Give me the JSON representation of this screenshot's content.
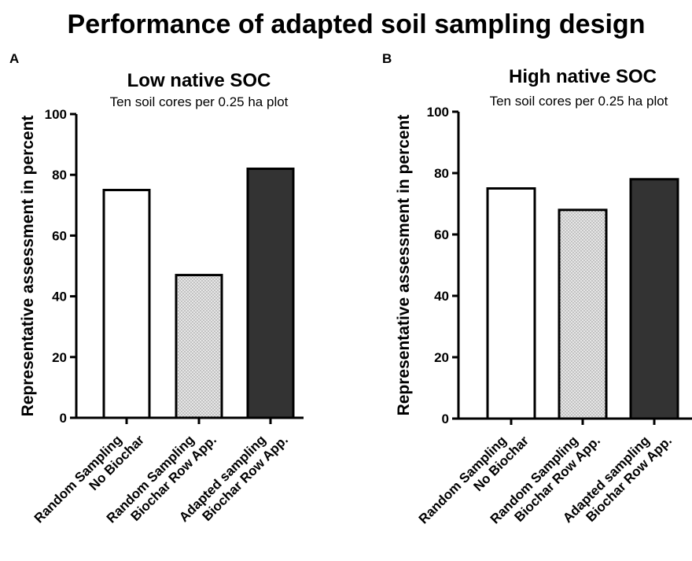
{
  "figure": {
    "title": "Performance of adapted soil sampling design"
  },
  "chart_data": [
    {
      "type": "bar",
      "panel": "A",
      "title": "Low native SOC",
      "subtitle": "Ten soil cores per 0.25 ha plot",
      "xlabel": "",
      "ylabel": "Representative assessment in percent",
      "ylim": [
        0,
        100
      ],
      "yticks": [
        0,
        20,
        40,
        60,
        80,
        100
      ],
      "grid": false,
      "legend": "none",
      "categories": [
        [
          "Random Sampling",
          "No Biochar"
        ],
        [
          "Random Sampling",
          "Biochar Row App."
        ],
        [
          "Adapted sampling",
          "Biochar Row App."
        ]
      ],
      "values": [
        75,
        47,
        82
      ],
      "bar_styles": [
        "white",
        "dotted",
        "dark"
      ]
    },
    {
      "type": "bar",
      "panel": "B",
      "title": "High native SOC",
      "subtitle": "Ten soil cores per 0.25 ha plot",
      "xlabel": "",
      "ylabel": "Representative assessment in percent",
      "ylim": [
        0,
        100
      ],
      "yticks": [
        0,
        20,
        40,
        60,
        80,
        100
      ],
      "grid": false,
      "legend": "none",
      "categories": [
        [
          "Random Sampling",
          "No Biochar"
        ],
        [
          "Random Sampling",
          "Biochar Row App."
        ],
        [
          "Adapted sampling",
          "Biochar Row App."
        ]
      ],
      "values": [
        75,
        68,
        78
      ],
      "bar_styles": [
        "white",
        "dotted",
        "dark"
      ]
    }
  ],
  "colors": {
    "axis": "#000000",
    "bar_white": "#ffffff",
    "bar_dotted_bg": "#e6e6e6",
    "bar_dotted_dot": "#8a8a8a",
    "bar_dark": "#333333"
  }
}
